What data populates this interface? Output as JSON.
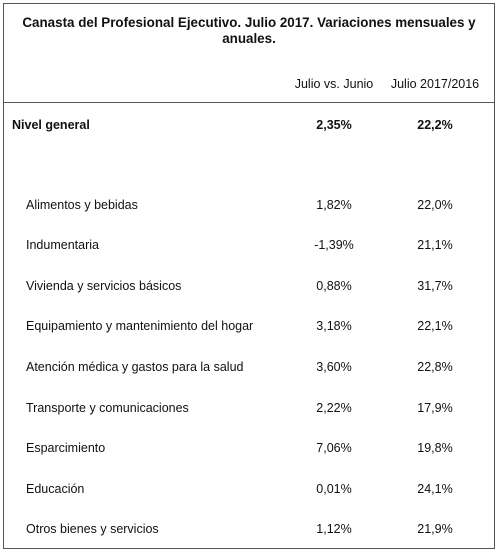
{
  "title": "Canasta del Profesional Ejecutivo. Julio 2017. Variaciones mensuales y anuales.",
  "title_line1": "Canasta del Profesional Ejecutivo. Julio 2017. Variaciones mensuales y",
  "title_line2": "anuales.",
  "columns": [
    "Julio vs. Junio",
    "Julio 2017/2016"
  ],
  "general": {
    "label": "Nivel general",
    "monthly": "2,35%",
    "annual": "22,2%"
  },
  "rows": [
    {
      "label": "Alimentos y bebidas",
      "monthly": "1,82%",
      "annual": "22,0%"
    },
    {
      "label": "Indumentaria",
      "monthly": "-1,39%",
      "annual": "21,1%"
    },
    {
      "label": "Vivienda y servicios básicos",
      "monthly": "0,88%",
      "annual": "31,7%"
    },
    {
      "label": "Equipamiento y mantenimiento del hogar",
      "monthly": "3,18%",
      "annual": "22,1%"
    },
    {
      "label": "Atención médica y gastos para la salud",
      "monthly": "3,60%",
      "annual": "22,8%"
    },
    {
      "label": "Transporte y comunicaciones",
      "monthly": "2,22%",
      "annual": "17,9%"
    },
    {
      "label": "Esparcimiento",
      "monthly": "7,06%",
      "annual": "19,8%"
    },
    {
      "label": "Educación",
      "monthly": "0,01%",
      "annual": "24,1%"
    },
    {
      "label": "Otros bienes y servicios",
      "monthly": "1,12%",
      "annual": "21,9%"
    }
  ]
}
